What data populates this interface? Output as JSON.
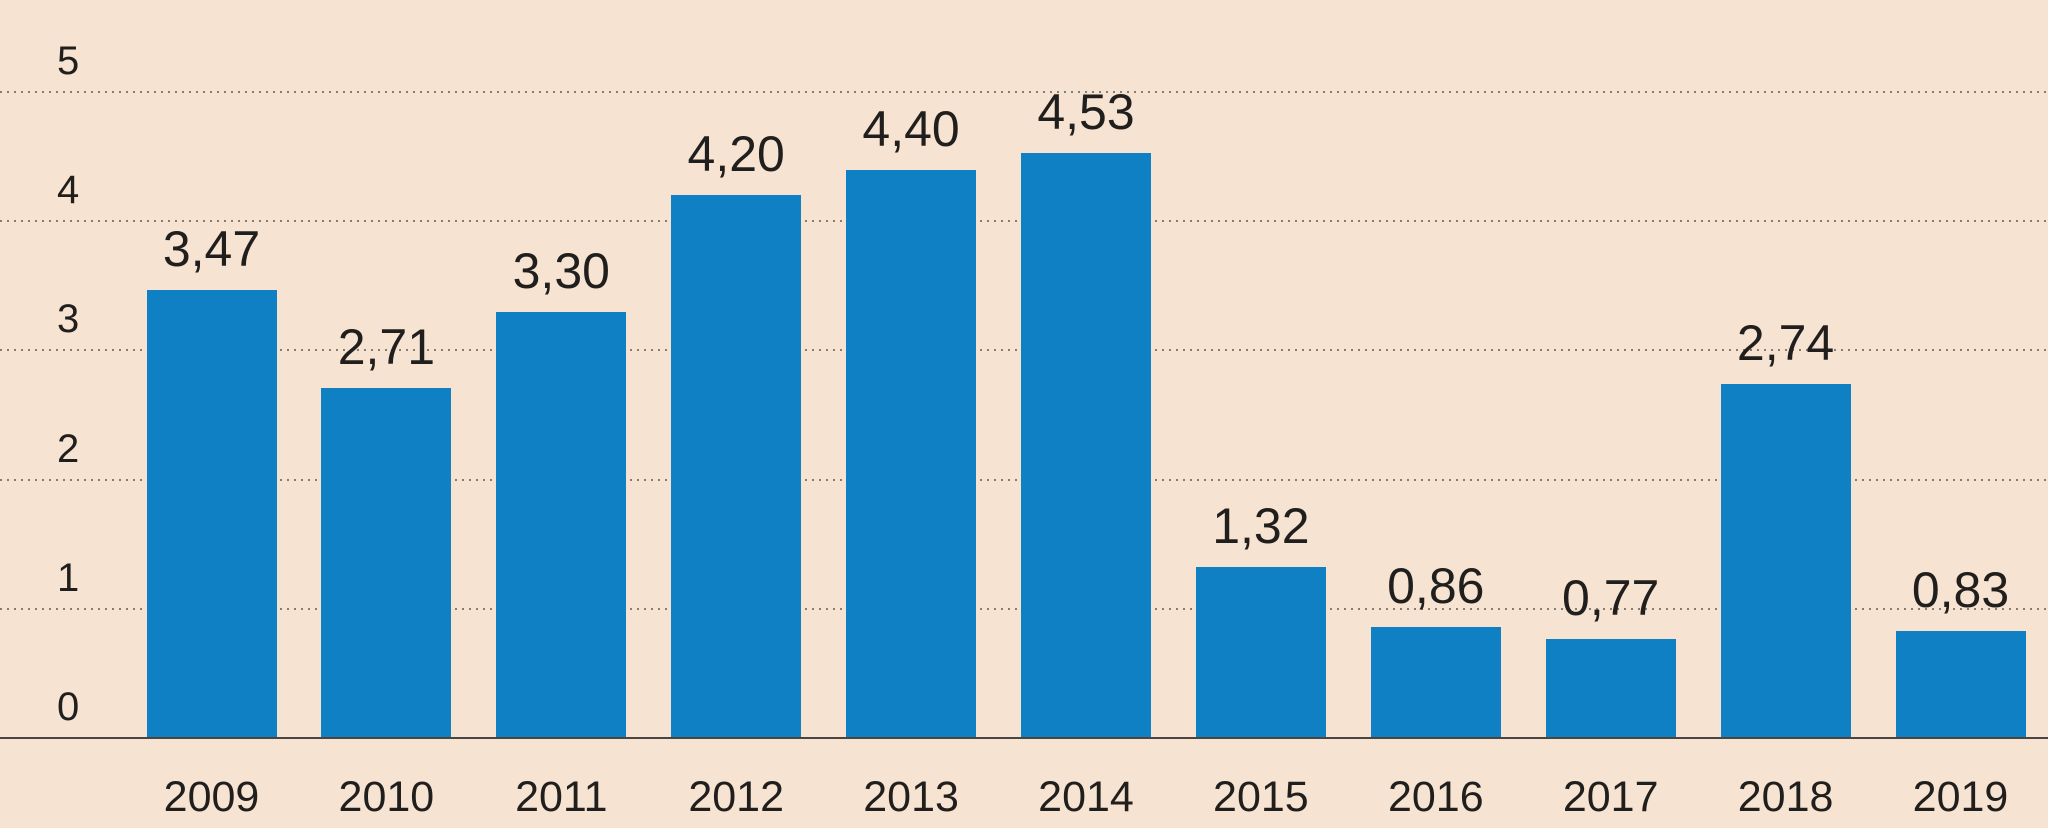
{
  "chart_data": {
    "type": "bar",
    "title": "",
    "xlabel": "",
    "ylabel": "",
    "categories": [
      "2009",
      "2010",
      "2011",
      "2012",
      "2013",
      "2014",
      "2015",
      "2016",
      "2017",
      "2018",
      "2019"
    ],
    "values": [
      3.47,
      2.71,
      3.3,
      4.2,
      4.4,
      4.53,
      1.32,
      0.86,
      0.77,
      2.74,
      0.83
    ],
    "value_labels": [
      "3,47",
      "2,71",
      "3,30",
      "4,20",
      "4,40",
      "4,53",
      "1,32",
      "0,86",
      "0,77",
      "2,74",
      "0,83"
    ],
    "ylim": [
      0,
      5
    ],
    "yticks": [
      "0",
      "1",
      "2",
      "3",
      "4",
      "5"
    ],
    "grid": "horizontal-dotted",
    "legend": "none",
    "colors": {
      "background": "#f6e3d1",
      "bar": "#0f80c4",
      "text": "#211f1d",
      "axis_line": "#4a4540",
      "gridline": "rgba(70,60,50,0.62)"
    }
  }
}
